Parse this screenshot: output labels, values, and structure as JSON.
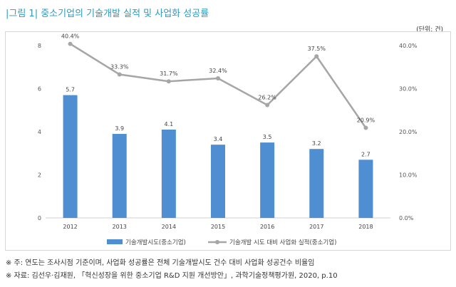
{
  "title": "|그림 1| 중소기업의 기술개발 실적 및 사업화 성공률",
  "unit": "(단위: 건)",
  "notes": [
    "※ 주: 연도는 조사시점 기준이며, 사업화 성공률은 전체 기술개발시도 건수 대비 사업화 성공건수 비율임",
    "※ 자료: 김선우·김재원, 「혁신성장을 위한 중소기업 R&D 지원 개선방안」, 과학기술정책평가원, 2020, p.10"
  ],
  "colors": {
    "bar": "#4f8fd1",
    "line": "#a6a6a6",
    "title": "#2b9bbf"
  },
  "chart_data": {
    "type": "bar",
    "categories": [
      "2012",
      "2013",
      "2014",
      "2015",
      "2016",
      "2017",
      "2018"
    ],
    "series": [
      {
        "name": "기술개발시도(중소기업)",
        "type": "bar",
        "axis": "left",
        "values": [
          5.7,
          3.9,
          4.1,
          3.4,
          3.5,
          3.2,
          2.7
        ],
        "labels": [
          "5.7",
          "3.9",
          "4.1",
          "3.4",
          "3.5",
          "3.2",
          "2.7"
        ]
      },
      {
        "name": "기술개발 시도 대비 사업화 실적(중소기업)",
        "type": "line",
        "axis": "right",
        "values": [
          40.4,
          33.3,
          31.7,
          32.4,
          26.2,
          37.5,
          20.9
        ],
        "labels": [
          "40.4%",
          "33.3%",
          "31.7%",
          "32.4%",
          "26.2%",
          "37.5%",
          "20.9%"
        ]
      }
    ],
    "ylim_left": [
      0,
      8
    ],
    "yticks_left": [
      "0",
      "2",
      "4",
      "6",
      "8"
    ],
    "ylim_right": [
      0,
      40
    ],
    "yticks_right": [
      "0.0%",
      "10.0%",
      "20.0%",
      "30.0%",
      "40.0%"
    ],
    "grid": false,
    "legend_position": "bottom"
  }
}
